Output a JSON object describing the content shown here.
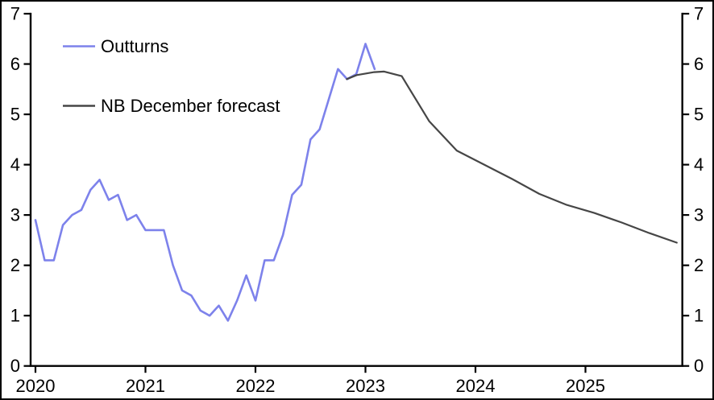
{
  "chart_data": {
    "type": "line",
    "title": "",
    "xlabel": "",
    "ylabel": "",
    "ylim": [
      0,
      7
    ],
    "xlim_years": [
      2019.95,
      2025.89
    ],
    "grid": false,
    "legend_position": "top-left",
    "y_ticks": [
      "0",
      "1",
      "2",
      "3",
      "4",
      "5",
      "6",
      "7"
    ],
    "y_ticks_right": [
      "0",
      "1",
      "2",
      "3",
      "4",
      "5",
      "6",
      "7"
    ],
    "x_ticks": [
      "2020",
      "2021",
      "2022",
      "2023",
      "2024",
      "2025"
    ],
    "series": [
      {
        "name": "Outturns",
        "color": "#7d82eb",
        "x_start_year": 2020.0,
        "x_step_months": 1,
        "values": [
          2.9,
          2.1,
          2.1,
          2.8,
          3.0,
          3.1,
          3.5,
          3.7,
          3.3,
          3.4,
          2.9,
          3.0,
          2.7,
          2.7,
          2.7,
          2.0,
          1.5,
          1.4,
          1.1,
          1.0,
          1.2,
          0.9,
          1.3,
          1.8,
          1.3,
          2.1,
          2.1,
          2.6,
          3.4,
          3.6,
          4.5,
          4.7,
          5.3,
          5.9,
          5.7,
          5.8,
          6.4,
          5.9
        ]
      },
      {
        "name": "NB December forecast",
        "color": "#464646",
        "points": [
          [
            2022.83,
            5.7
          ],
          [
            2022.92,
            5.78
          ],
          [
            2023.08,
            5.84
          ],
          [
            2023.17,
            5.85
          ],
          [
            2023.33,
            5.76
          ],
          [
            2023.58,
            4.86
          ],
          [
            2023.83,
            4.28
          ],
          [
            2024.08,
            4.0
          ],
          [
            2024.33,
            3.72
          ],
          [
            2024.58,
            3.42
          ],
          [
            2024.83,
            3.2
          ],
          [
            2025.08,
            3.04
          ],
          [
            2025.33,
            2.85
          ],
          [
            2025.58,
            2.64
          ],
          [
            2025.83,
            2.45
          ]
        ]
      }
    ]
  }
}
